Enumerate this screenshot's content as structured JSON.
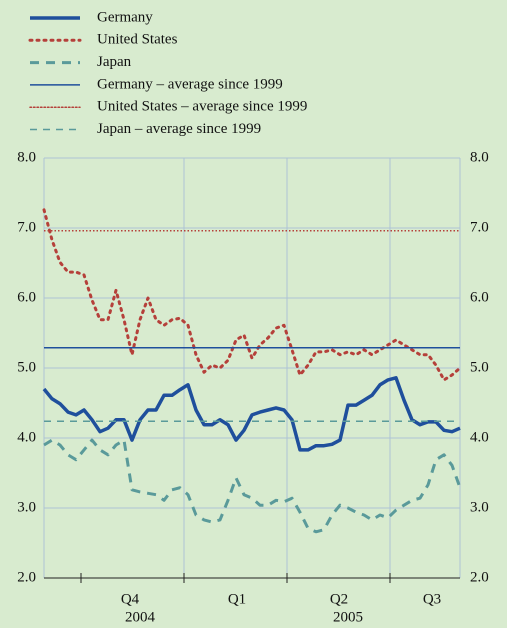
{
  "chart_data": {
    "type": "line",
    "x_labels": [
      "Q4",
      "Q1",
      "Q2",
      "Q3"
    ],
    "year_labels": [
      "2004",
      "2005"
    ],
    "ylim": [
      2,
      8
    ],
    "yticks": [
      {
        "value": 2,
        "label": "2.0"
      },
      {
        "value": 3,
        "label": "3.0"
      },
      {
        "value": 4,
        "label": "4.0"
      },
      {
        "value": 5,
        "label": "5.0"
      },
      {
        "value": 6,
        "label": "6.0"
      },
      {
        "value": 7,
        "label": "7.0"
      },
      {
        "value": 8,
        "label": "8.0"
      }
    ],
    "y2lim": [
      2,
      8
    ],
    "y2ticks": [
      {
        "value": 2,
        "label": "2.0"
      },
      {
        "value": 3,
        "label": "3.0"
      },
      {
        "value": 4,
        "label": "4.0"
      },
      {
        "value": 5,
        "label": "5.0"
      },
      {
        "value": 6,
        "label": "6.0"
      },
      {
        "value": 7,
        "label": "7.0"
      },
      {
        "value": 8,
        "label": "8.0"
      }
    ],
    "grid": true,
    "series": [
      {
        "name": "Germany",
        "color": "#1f4f9c",
        "style": "solid",
        "width": 3.5,
        "values": [
          4.7,
          4.56,
          4.49,
          4.37,
          4.33,
          4.4,
          4.26,
          4.09,
          4.14,
          4.26,
          4.26,
          3.97,
          4.26,
          4.4,
          4.4,
          4.61,
          4.61,
          4.69,
          4.76,
          4.4,
          4.19,
          4.19,
          4.26,
          4.19,
          3.97,
          4.11,
          4.33,
          4.37,
          4.4,
          4.43,
          4.4,
          4.26,
          3.83,
          3.83,
          3.89,
          3.89,
          3.91,
          3.97,
          4.47,
          4.47,
          4.54,
          4.61,
          4.76,
          4.83,
          4.86,
          4.54,
          4.26,
          4.19,
          4.23,
          4.23,
          4.11,
          4.09,
          4.14
        ]
      },
      {
        "name": "United States",
        "color": "#b5403a",
        "style": "dotted",
        "width": 3,
        "values": [
          7.26,
          6.83,
          6.51,
          6.37,
          6.37,
          6.33,
          5.97,
          5.69,
          5.69,
          6.11,
          5.69,
          5.19,
          5.69,
          6.0,
          5.69,
          5.61,
          5.69,
          5.71,
          5.61,
          5.19,
          4.94,
          5.04,
          5.0,
          5.11,
          5.4,
          5.47,
          5.14,
          5.33,
          5.43,
          5.57,
          5.61,
          5.26,
          4.9,
          5.04,
          5.23,
          5.23,
          5.26,
          5.19,
          5.23,
          5.19,
          5.26,
          5.19,
          5.26,
          5.33,
          5.4,
          5.33,
          5.26,
          5.19,
          5.19,
          5.04,
          4.83,
          4.9,
          5.0
        ]
      },
      {
        "name": "Japan",
        "color": "#5a9a9a",
        "style": "dashed",
        "width": 3,
        "values": [
          3.9,
          3.97,
          3.9,
          3.76,
          3.69,
          3.83,
          3.97,
          3.83,
          3.76,
          3.9,
          3.97,
          3.26,
          3.23,
          3.21,
          3.19,
          3.11,
          3.26,
          3.29,
          3.19,
          2.9,
          2.83,
          2.8,
          2.83,
          3.11,
          3.43,
          3.19,
          3.14,
          3.04,
          3.04,
          3.11,
          3.09,
          3.14,
          2.94,
          2.71,
          2.66,
          2.69,
          2.9,
          3.04,
          3.0,
          2.94,
          2.9,
          2.83,
          2.9,
          2.86,
          2.97,
          3.04,
          3.11,
          3.14,
          3.33,
          3.69,
          3.76,
          3.61,
          3.29
        ]
      },
      {
        "name": "Germany – average since 1999",
        "color": "#1f4f9c",
        "style": "solid",
        "width": 1.5,
        "value": 5.29
      },
      {
        "name": "United States – average since 1999",
        "color": "#b5403a",
        "style": "dotted",
        "width": 1.5,
        "value": 6.96
      },
      {
        "name": "Japan – average since 1999",
        "color": "#5a9a9a",
        "style": "dashed",
        "width": 1.5,
        "value": 4.24
      }
    ]
  }
}
